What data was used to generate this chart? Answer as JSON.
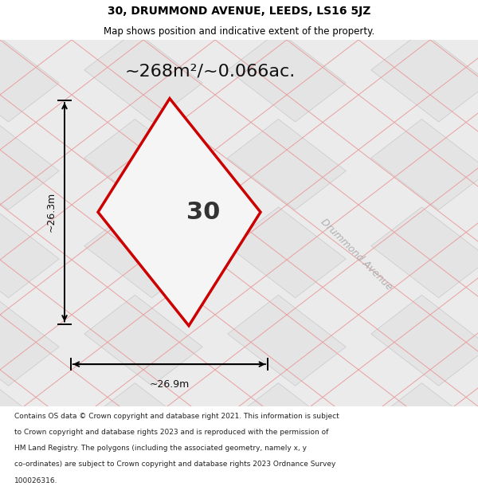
{
  "title": "30, DRUMMOND AVENUE, LEEDS, LS16 5JZ",
  "subtitle": "Map shows position and indicative extent of the property.",
  "area_label": "~268m²/~0.066ac.",
  "plot_number": "30",
  "dim_height": "~26.3m",
  "dim_width": "~26.9m",
  "street_label": "Drummond Avenue",
  "footer_lines": [
    "Contains OS data © Crown copyright and database right 2021. This information is subject",
    "to Crown copyright and database rights 2023 and is reproduced with the permission of",
    "HM Land Registry. The polygons (including the associated geometry, namely x, y",
    "co-ordinates) are subject to Crown copyright and database rights 2023 Ordnance Survey",
    "100026316."
  ],
  "pink_line_color": "#e8a0a0",
  "plot_color": "#cc0000",
  "map_bg": "#ebebeb",
  "tile_face": "#e4e4e4",
  "tile_edge": "#c8c8c8"
}
